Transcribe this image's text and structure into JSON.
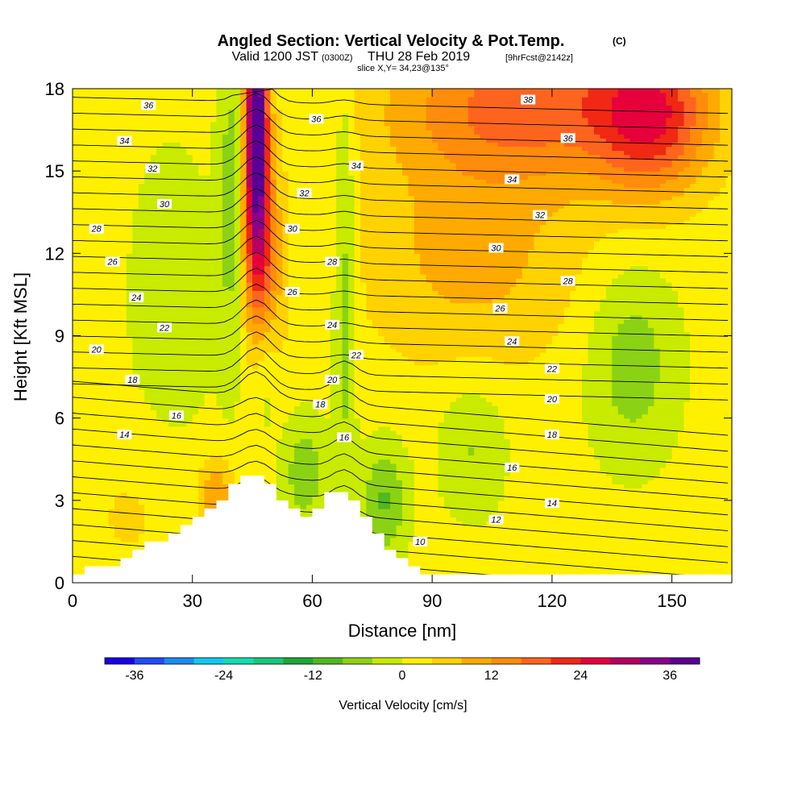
{
  "title": {
    "main": "Angled Section: Vertical Velocity & Pot.Temp.",
    "main_suffix": "(C)",
    "sub_prefix": "Valid 1200 JST",
    "sub_z": "(0300Z)",
    "sub_date": "THU 28 Feb 2019",
    "sub_fcst": "[9hrFcst@2142z]",
    "slice": "slice X,Y= 34,23@135°"
  },
  "chart_data": {
    "type": "heatmap",
    "xlabel": "Distance [nm]",
    "ylabel": "Height [Kft MSL]",
    "xlim": [
      0,
      165
    ],
    "ylim": [
      0,
      18
    ],
    "x_ticks": [
      "0",
      "30",
      "60",
      "90",
      "120",
      "150"
    ],
    "y_ticks": [
      "0",
      "3",
      "6",
      "9",
      "12",
      "15",
      "18"
    ],
    "x_tick_values": [
      0,
      30,
      60,
      90,
      120,
      150
    ],
    "y_tick_values": [
      0,
      3,
      6,
      9,
      12,
      15,
      18
    ],
    "fill_variable": "Vertical Velocity [cm/s]",
    "contour_variable": "Pot.Temp.",
    "colorbar": {
      "title": "Vertical Velocity [cm/s]",
      "min": -40,
      "max": 40,
      "step": 4,
      "tick_labels": [
        "-36",
        "-24",
        "-12",
        "0",
        "12",
        "24",
        "36"
      ],
      "tick_values": [
        -36,
        -24,
        -12,
        0,
        12,
        24,
        36
      ],
      "colors": [
        "#1a00e6",
        "#1f4df5",
        "#1b8cf0",
        "#10c8f0",
        "#14dcb4",
        "#19c878",
        "#1aaa32",
        "#50b91e",
        "#8cd214",
        "#c8eb00",
        "#fff000",
        "#ffd200",
        "#ffaa00",
        "#ff8c0a",
        "#ff641e",
        "#f02814",
        "#e6003c",
        "#b40064",
        "#8c008c",
        "#5a0096"
      ]
    },
    "terrain_profile": [
      {
        "x": 0,
        "h": 0.3
      },
      {
        "x": 10,
        "h": 0.7
      },
      {
        "x": 16,
        "h": 1.0
      },
      {
        "x": 22,
        "h": 1.6
      },
      {
        "x": 28,
        "h": 2.0
      },
      {
        "x": 33,
        "h": 2.6
      },
      {
        "x": 38,
        "h": 3.1
      },
      {
        "x": 43,
        "h": 3.8
      },
      {
        "x": 49,
        "h": 3.8
      },
      {
        "x": 52,
        "h": 3.2
      },
      {
        "x": 56,
        "h": 2.6
      },
      {
        "x": 59,
        "h": 2.3
      },
      {
        "x": 62,
        "h": 2.6
      },
      {
        "x": 66,
        "h": 3.5
      },
      {
        "x": 71,
        "h": 3.0
      },
      {
        "x": 75,
        "h": 2.0
      },
      {
        "x": 79,
        "h": 1.3
      },
      {
        "x": 84,
        "h": 0.8
      },
      {
        "x": 88,
        "h": 0.3
      },
      {
        "x": 165,
        "h": 0.3
      }
    ],
    "velocity_features": [
      {
        "x": 46,
        "y": 17.5,
        "value": 32,
        "sx": 1.8,
        "sy": 2.5
      },
      {
        "x": 46,
        "y": 14,
        "value": 20,
        "sx": 2.5,
        "sy": 3.0
      },
      {
        "x": 48,
        "y": 11,
        "value": 12,
        "sx": 3.5,
        "sy": 3.0
      },
      {
        "x": 40,
        "y": 14,
        "value": -8,
        "sx": 2.5,
        "sy": 4.5
      },
      {
        "x": 68,
        "y": 11,
        "value": -8,
        "sx": 2.0,
        "sy": 6.0
      },
      {
        "x": 48,
        "y": 8,
        "value": -8,
        "sx": 2.5,
        "sy": 2.0
      },
      {
        "x": 78,
        "y": 3.0,
        "value": -10,
        "sx": 4.0,
        "sy": 1.5
      },
      {
        "x": 58,
        "y": 4.0,
        "value": -8,
        "sx": 4.0,
        "sy": 1.5
      },
      {
        "x": 100,
        "y": 5.0,
        "value": -6,
        "sx": 6.0,
        "sy": 1.8
      },
      {
        "x": 140,
        "y": 8.0,
        "value": -8,
        "sx": 8.0,
        "sy": 2.5
      },
      {
        "x": 25,
        "y": 10.5,
        "value": -4,
        "sx": 8.0,
        "sy": 4.0
      },
      {
        "x": 115,
        "y": 17.5,
        "value": 16,
        "sx": 25,
        "sy": 2.0
      },
      {
        "x": 145,
        "y": 17,
        "value": 18,
        "sx": 10,
        "sy": 2.0
      },
      {
        "x": 100,
        "y": 12,
        "value": 8,
        "sx": 20,
        "sy": 3.0
      },
      {
        "x": 36,
        "y": 3.2,
        "value": 10,
        "sx": 3.0,
        "sy": 1.0
      },
      {
        "x": 15,
        "y": 2.5,
        "value": 3,
        "sx": 10,
        "sy": 2.0
      }
    ],
    "theta_contours": {
      "min": 8,
      "max": 38,
      "step": 1
    },
    "contour_labels": [
      {
        "x": 19,
        "y": 17.4,
        "text": "36"
      },
      {
        "x": 13,
        "y": 16.1,
        "text": "34"
      },
      {
        "x": 20,
        "y": 15.1,
        "text": "32"
      },
      {
        "x": 23,
        "y": 13.8,
        "text": "30"
      },
      {
        "x": 6,
        "y": 12.9,
        "text": "28"
      },
      {
        "x": 10,
        "y": 11.7,
        "text": "26"
      },
      {
        "x": 16,
        "y": 10.4,
        "text": "24"
      },
      {
        "x": 23,
        "y": 9.3,
        "text": "22"
      },
      {
        "x": 6,
        "y": 8.5,
        "text": "20"
      },
      {
        "x": 15,
        "y": 7.4,
        "text": "18"
      },
      {
        "x": 26,
        "y": 6.1,
        "text": "16"
      },
      {
        "x": 13,
        "y": 5.4,
        "text": "14"
      },
      {
        "x": 61,
        "y": 16.9,
        "text": "36"
      },
      {
        "x": 71,
        "y": 15.2,
        "text": "34"
      },
      {
        "x": 58,
        "y": 14.2,
        "text": "32"
      },
      {
        "x": 55,
        "y": 12.9,
        "text": "30"
      },
      {
        "x": 65,
        "y": 11.7,
        "text": "28"
      },
      {
        "x": 55,
        "y": 10.6,
        "text": "26"
      },
      {
        "x": 65,
        "y": 9.4,
        "text": "24"
      },
      {
        "x": 71,
        "y": 8.3,
        "text": "22"
      },
      {
        "x": 65,
        "y": 7.4,
        "text": "20"
      },
      {
        "x": 62,
        "y": 6.5,
        "text": "18"
      },
      {
        "x": 68,
        "y": 5.3,
        "text": "16"
      },
      {
        "x": 114,
        "y": 17.6,
        "text": "38"
      },
      {
        "x": 124,
        "y": 16.2,
        "text": "36"
      },
      {
        "x": 110,
        "y": 14.7,
        "text": "34"
      },
      {
        "x": 117,
        "y": 13.4,
        "text": "32"
      },
      {
        "x": 106,
        "y": 12.2,
        "text": "30"
      },
      {
        "x": 124,
        "y": 11.0,
        "text": "28"
      },
      {
        "x": 107,
        "y": 10.0,
        "text": "26"
      },
      {
        "x": 110,
        "y": 8.8,
        "text": "24"
      },
      {
        "x": 120,
        "y": 7.8,
        "text": "22"
      },
      {
        "x": 120,
        "y": 6.7,
        "text": "20"
      },
      {
        "x": 120,
        "y": 5.4,
        "text": "18"
      },
      {
        "x": 110,
        "y": 4.2,
        "text": "16"
      },
      {
        "x": 120,
        "y": 2.9,
        "text": "14"
      },
      {
        "x": 106,
        "y": 2.3,
        "text": "12"
      },
      {
        "x": 87,
        "y": 1.5,
        "text": "10"
      }
    ]
  }
}
